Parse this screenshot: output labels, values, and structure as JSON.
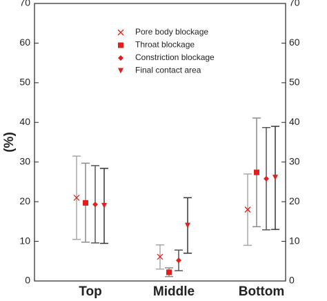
{
  "chart_data": {
    "type": "errorbar",
    "y_label": "(%)",
    "categories": [
      "Top",
      "Middle",
      "Bottom"
    ],
    "ylim": [
      0,
      70
    ],
    "yticks": [
      0,
      10,
      20,
      30,
      40,
      50,
      60,
      70
    ],
    "y2lim": [
      0,
      70
    ],
    "y2ticks": [
      0,
      10,
      20,
      30,
      40,
      50,
      60,
      70
    ],
    "legend": "top",
    "series": [
      {
        "name": "Pore body blockage",
        "marker": "x",
        "color": "#e0201e",
        "bar_color": "#a8a8a8",
        "values": [
          21,
          6.1,
          18
        ],
        "low": [
          10.5,
          3.0,
          9.0
        ],
        "high": [
          31.5,
          9.1,
          27.0
        ]
      },
      {
        "name": "Throat blockage",
        "marker": "square",
        "color": "#e0201e",
        "bar_color": "#8a8a8a",
        "values": [
          19.7,
          2.2,
          27.4
        ],
        "low": [
          9.8,
          1.1,
          13.7
        ],
        "high": [
          29.7,
          3.3,
          41.1
        ]
      },
      {
        "name": "Constriction blockage",
        "marker": "diamond",
        "color": "#e0201e",
        "bar_color": "#555555",
        "values": [
          19.3,
          5.2,
          25.8
        ],
        "low": [
          9.6,
          2.6,
          12.9
        ],
        "high": [
          29.1,
          7.8,
          38.7
        ]
      },
      {
        "name": "Final contact area",
        "marker": "triangle-down",
        "color": "#e0201e",
        "bar_color": "#333333",
        "values": [
          19,
          14,
          26.1
        ],
        "low": [
          9.5,
          7.0,
          13.0
        ],
        "high": [
          28.4,
          21.0,
          39.0
        ]
      }
    ]
  }
}
